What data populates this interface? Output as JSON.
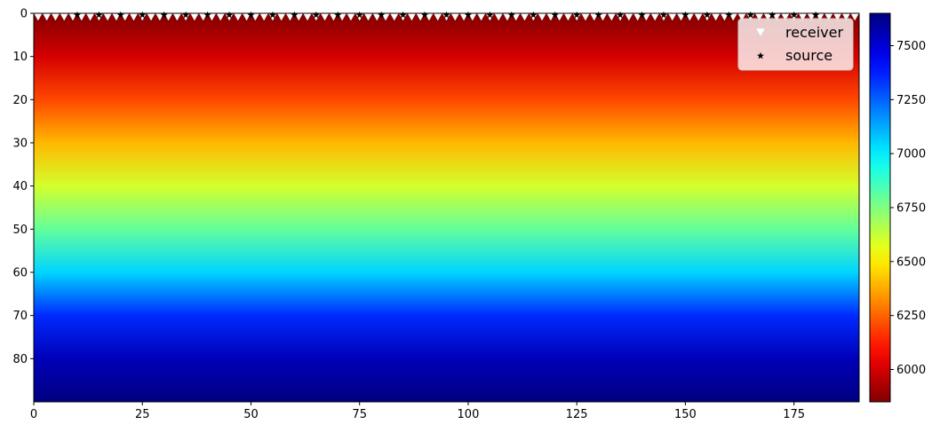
{
  "chart_data": {
    "type": "heatmap",
    "title": "",
    "xlabel": "",
    "ylabel": "",
    "xlim": [
      0,
      190
    ],
    "ylim": [
      90,
      0
    ],
    "x_ticks": [
      0,
      25,
      50,
      75,
      100,
      125,
      150,
      175
    ],
    "y_ticks": [
      0,
      10,
      20,
      30,
      40,
      50,
      60,
      70,
      80
    ],
    "colormap": "jet_r",
    "colorbar": {
      "range": [
        5850,
        7650
      ],
      "ticks": [
        6000,
        6250,
        6500,
        6750,
        7000,
        7250,
        7500
      ]
    },
    "velocity_profile": {
      "depth": [
        0,
        10,
        20,
        30,
        40,
        50,
        60,
        70,
        80,
        90
      ],
      "value": [
        5850,
        6000,
        6200,
        6400,
        6600,
        6800,
        7050,
        7350,
        7550,
        7650
      ]
    },
    "receiver_x_range": [
      1,
      189
    ],
    "receiver_spacing": 2,
    "receiver_depth": 0,
    "source_x": [
      10,
      15,
      20,
      25,
      30,
      35,
      40,
      45,
      50,
      55,
      60,
      65,
      70,
      75,
      80,
      85,
      90,
      95,
      100,
      105,
      110,
      115,
      120,
      125,
      130,
      135,
      140,
      145,
      150,
      155,
      160,
      165,
      170,
      175,
      180
    ],
    "source_depth": 0,
    "legend": {
      "placement": "top-right",
      "entries": [
        {
          "label": "receiver",
          "marker": "triangle-down",
          "color": "#ffffff"
        },
        {
          "label": "source",
          "marker": "star",
          "color": "#000000"
        }
      ]
    }
  }
}
